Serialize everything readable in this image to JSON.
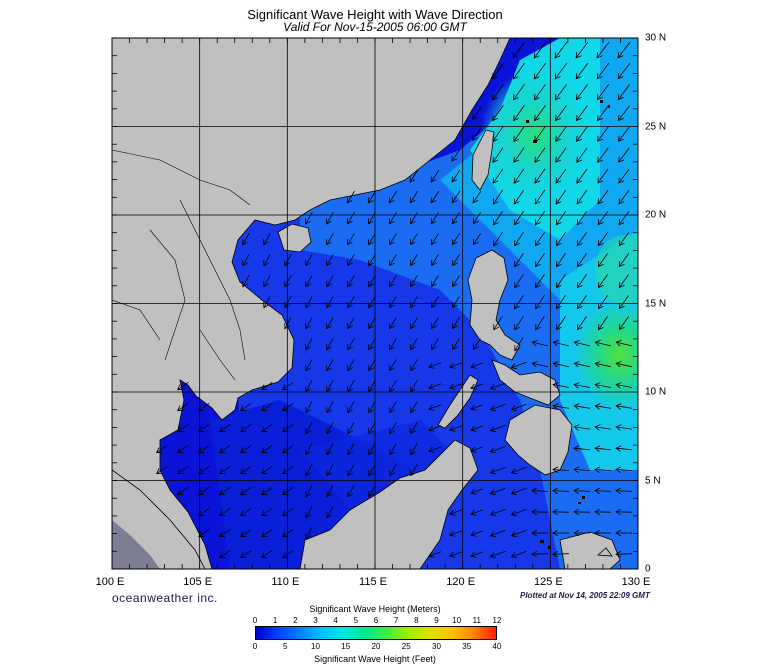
{
  "title": "Significant Wave Height with Wave Direction",
  "subtitle": "Valid For Nov-15-2005 06:00 GMT",
  "brand": "oceanweather inc.",
  "plotted": "Plotted at Nov 14, 2005 22:09 GMT",
  "lon_labels": [
    "100 E",
    "105 E",
    "110 E",
    "115 E",
    "120 E",
    "125 E",
    "130 E"
  ],
  "lat_labels": [
    "30 N",
    "25 N",
    "20 N",
    "15 N",
    "10 N",
    "5 N",
    "0"
  ],
  "colorbar": {
    "title_top": "Significant Wave Height (Meters)",
    "title_bottom": "Significant Wave Height (Feet)",
    "meters_ticks": [
      "0",
      "1",
      "2",
      "3",
      "4",
      "5",
      "6",
      "7",
      "8",
      "9",
      "10",
      "11",
      "12"
    ],
    "feet_ticks": [
      "0",
      "5",
      "10",
      "15",
      "20",
      "25",
      "30",
      "35",
      "40"
    ],
    "colors": [
      "#0000c8",
      "#0040ff",
      "#0080ff",
      "#00c0ff",
      "#00e8e0",
      "#00e890",
      "#40ee40",
      "#a0ee00",
      "#e0e000",
      "#ffc000",
      "#ff8000",
      "#ff2000"
    ]
  },
  "colors": {
    "land": "#c0c0c0",
    "deep": "#0a14d8",
    "mid": "#1a5cf0",
    "light": "#12a8f0",
    "cyan": "#10e0e8",
    "green": "#20e070"
  }
}
